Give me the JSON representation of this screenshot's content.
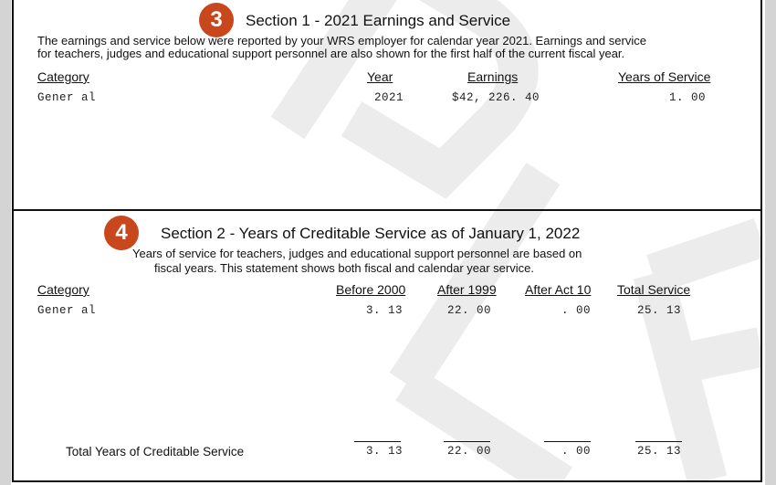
{
  "section1": {
    "badge": "3",
    "title": "Section 1 - 2021 Earnings and Service",
    "description_lines": [
      "The earnings and service below were reported by your WRS employer for calendar year 2021. Earnings and service",
      "for teachers, judges and educational support personnel are also shown for the first half of the current fiscal year."
    ],
    "headers": {
      "category": "Category",
      "year": "Year",
      "earnings": "Earnings",
      "years_of_service": "Years of Service"
    },
    "rows": [
      {
        "category": "Gener al",
        "year": "2021",
        "earnings": "$42, 226. 40",
        "years_of_service": "1. 00"
      }
    ]
  },
  "section2": {
    "badge": "4",
    "title": "Section 2 - Years of Creditable Service as of January 1, 2022",
    "description_lines": [
      "Years of service for teachers, judges and educational support personnel are based on",
      "fiscal years.  This statement shows both fiscal and calendar year service."
    ],
    "headers": {
      "category": "Category",
      "before_2000": "Before 2000",
      "after_1999": "After 1999",
      "after_act_10": "After Act 10",
      "total_service": "Total Service"
    },
    "rows": [
      {
        "category": "Gener al",
        "before_2000": "3. 13",
        "after_1999": "22. 00",
        "after_act_10": ". 00",
        "total_service": "25. 13"
      }
    ],
    "totals": {
      "label": "Total Years of Creditable Service",
      "before_2000": "3. 13",
      "after_1999": "22. 00",
      "after_act_10": ". 00",
      "total_service": "25. 13"
    }
  },
  "colors": {
    "badge": "#c8471d",
    "watermark": "#ececec",
    "border": "#111111"
  }
}
